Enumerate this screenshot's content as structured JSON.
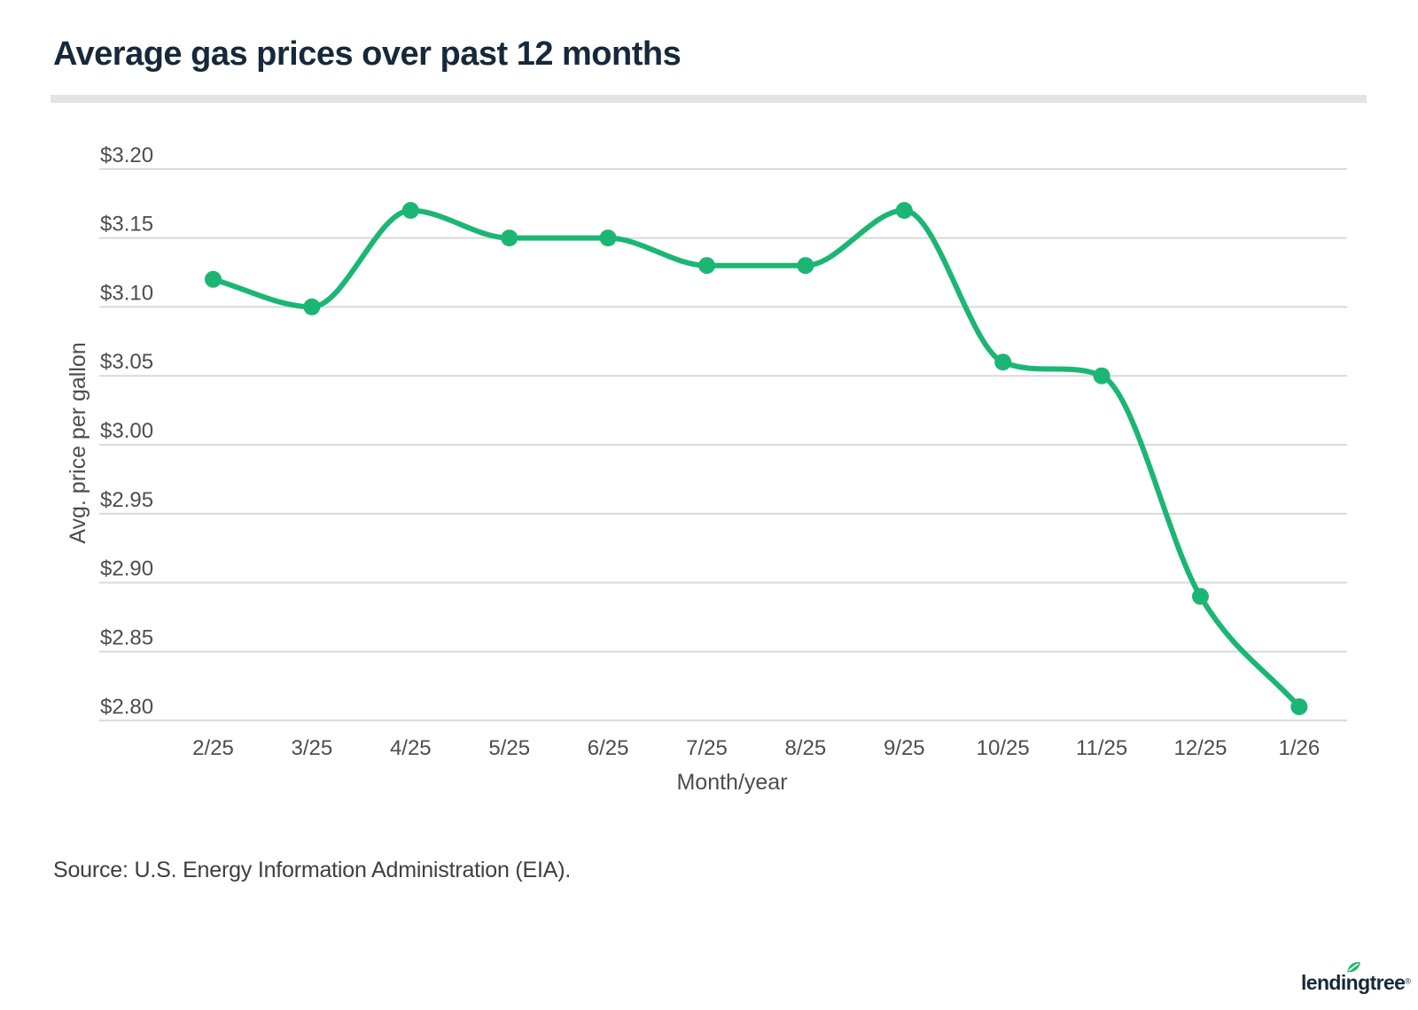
{
  "page": {
    "title": "Average gas prices over past 12 months",
    "source": "Source: U.S. Energy Information Administration (EIA).",
    "logo_text": "lendingtree",
    "registered": "®"
  },
  "colors": {
    "line": "#1cb674",
    "marker": "#1cb674",
    "grid": "#d9d9d9",
    "tick_label": "#4d4d4d",
    "axis_title": "#4d4d4d",
    "title": "#16293b",
    "divider": "#e4e4e4",
    "source": "#3f3f3f",
    "leaf": "#2eb571",
    "logo_navy": "#16293b"
  },
  "chart_data": {
    "type": "line",
    "title": "Average gas prices over past 12 months",
    "xlabel": "Month/year",
    "ylabel": "Avg. price per gallon",
    "categories": [
      "2/25",
      "3/25",
      "4/25",
      "5/25",
      "6/25",
      "7/25",
      "8/25",
      "9/25",
      "10/25",
      "11/25",
      "12/25",
      "1/26"
    ],
    "values": [
      3.12,
      3.1,
      3.17,
      3.15,
      3.15,
      3.13,
      3.13,
      3.17,
      3.06,
      3.05,
      2.89,
      2.81
    ],
    "ylim": [
      2.8,
      3.2
    ],
    "ytick_step": 0.05,
    "ytick_labels": [
      "$2.80",
      "$2.85",
      "$2.90",
      "$2.95",
      "$3.00",
      "$3.05",
      "$3.10",
      "$3.15",
      "$3.20"
    ],
    "grid": "horizontal",
    "legend": "none",
    "marker": "circle"
  }
}
